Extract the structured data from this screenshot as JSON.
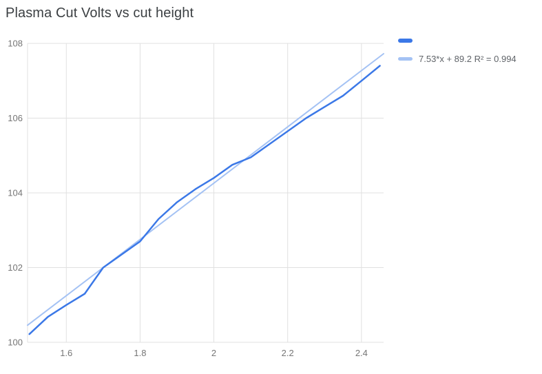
{
  "chart_data": {
    "type": "line",
    "title": "Plasma Cut Volts vs cut height",
    "xlabel": "",
    "ylabel": "",
    "xlim": [
      1.495,
      2.46
    ],
    "ylim": [
      100,
      108
    ],
    "x_ticks": [
      1.6,
      1.8,
      2,
      2.2,
      2.4
    ],
    "x_tick_labels": [
      "1.6",
      "1.8",
      "2",
      "2.2",
      "2.4"
    ],
    "y_ticks": [
      100,
      102,
      104,
      106,
      108
    ],
    "y_tick_labels": [
      "100",
      "102",
      "104",
      "106",
      "108"
    ],
    "grid": true,
    "legend_position": "right",
    "series": [
      {
        "name": "",
        "kind": "line",
        "color": "#3b78e7",
        "x": [
          1.5,
          1.55,
          1.6,
          1.65,
          1.7,
          1.75,
          1.8,
          1.85,
          1.9,
          1.95,
          2.0,
          2.05,
          2.1,
          2.15,
          2.2,
          2.25,
          2.3,
          2.35,
          2.4,
          2.45
        ],
        "y": [
          100.22,
          100.68,
          101.0,
          101.3,
          102.0,
          102.35,
          102.7,
          103.3,
          103.75,
          104.1,
          104.4,
          104.75,
          104.95,
          105.3,
          105.65,
          106.0,
          106.3,
          106.6,
          107.0,
          107.4
        ]
      },
      {
        "name": "7.53*x + 89.2 R² = 0.994",
        "kind": "trendline",
        "color": "#a4c2f4",
        "slope": 7.53,
        "intercept": 89.2,
        "r_squared": 0.994
      }
    ],
    "colors": {
      "series": "#3b78e7",
      "trendline": "#a4c2f4",
      "gridline": "#e0e0e0",
      "axis_text": "#757575",
      "title_text": "#3c4043",
      "legend_text": "#5f6368",
      "background": "#ffffff"
    }
  }
}
